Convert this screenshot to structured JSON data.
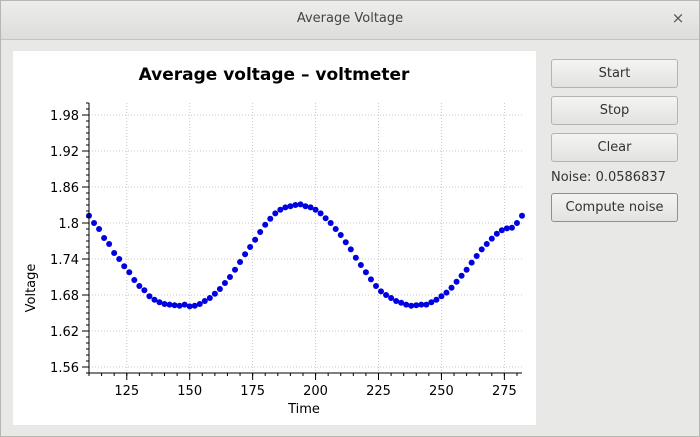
{
  "window": {
    "title": "Average Voltage",
    "close_glyph": "×"
  },
  "controls": {
    "start_label": "Start",
    "stop_label": "Stop",
    "clear_label": "Clear",
    "noise_label": "Noise:",
    "noise_value": "0.0586837",
    "compute_label": "Compute noise"
  },
  "chart_data": {
    "type": "scatter",
    "title": "Average voltage – voltmeter",
    "xlabel": "Time",
    "ylabel": "Voltage",
    "xlim": [
      110,
      282
    ],
    "ylim": [
      1.55,
      2.0
    ],
    "xticks": [
      125,
      150,
      175,
      200,
      225,
      250,
      275
    ],
    "yticks": [
      1.56,
      1.62,
      1.68,
      1.74,
      1.8,
      1.86,
      1.92,
      1.98
    ],
    "ytick_labels": [
      "1.56",
      "1.62",
      "1.68",
      "1.74",
      "1.8",
      "1.86",
      "1.92",
      "1.98"
    ],
    "grid": true,
    "marker_color": "#0000e0",
    "series": [
      {
        "x": [
          110,
          112,
          114,
          116,
          118,
          120,
          122,
          124,
          126,
          128,
          130,
          132,
          134,
          136,
          138,
          140,
          142,
          144,
          146,
          148,
          150,
          152,
          154,
          156,
          158,
          160,
          162,
          164,
          166,
          168,
          170,
          172,
          174,
          176,
          178,
          180,
          182,
          184,
          186,
          188,
          190,
          192,
          194,
          196,
          198,
          200,
          202,
          204,
          206,
          208,
          210,
          212,
          214,
          216,
          218,
          220,
          222,
          224,
          226,
          228,
          230,
          232,
          234,
          236,
          238,
          240,
          242,
          244,
          246,
          248,
          250,
          252,
          254,
          256,
          258,
          260,
          262,
          264,
          266,
          268,
          270,
          272,
          274,
          276,
          278,
          280,
          282
        ],
        "y": [
          1.812,
          1.8,
          1.79,
          1.775,
          1.765,
          1.75,
          1.74,
          1.728,
          1.718,
          1.705,
          1.695,
          1.688,
          1.678,
          1.672,
          1.668,
          1.665,
          1.664,
          1.663,
          1.662,
          1.664,
          1.661,
          1.662,
          1.665,
          1.67,
          1.675,
          1.682,
          1.69,
          1.7,
          1.71,
          1.722,
          1.735,
          1.748,
          1.76,
          1.772,
          1.785,
          1.797,
          1.807,
          1.816,
          1.822,
          1.826,
          1.828,
          1.83,
          1.831,
          1.828,
          1.826,
          1.822,
          1.816,
          1.808,
          1.8,
          1.79,
          1.78,
          1.768,
          1.756,
          1.742,
          1.73,
          1.718,
          1.706,
          1.695,
          1.686,
          1.68,
          1.675,
          1.67,
          1.667,
          1.664,
          1.662,
          1.663,
          1.664,
          1.664,
          1.668,
          1.672,
          1.678,
          1.684,
          1.692,
          1.702,
          1.712,
          1.722,
          1.734,
          1.745,
          1.756,
          1.765,
          1.774,
          1.782,
          1.788,
          1.791,
          1.792,
          1.8,
          1.812
        ]
      }
    ]
  }
}
